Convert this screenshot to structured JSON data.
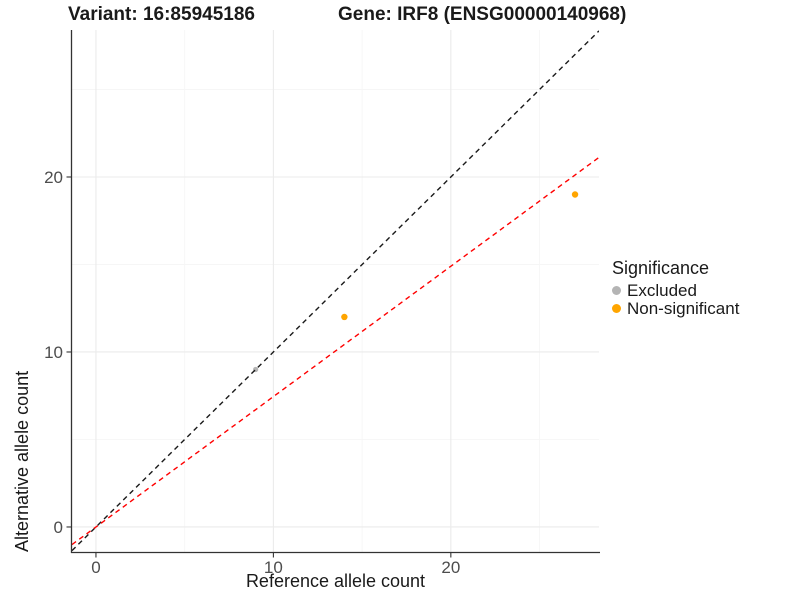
{
  "chart_data": {
    "type": "scatter",
    "titles": {
      "left": "Variant: 16:85945186",
      "right": "Gene: IRF8 (ENSG00000140968)"
    },
    "xlabel": "Reference allele count",
    "ylabel": "Alternative allele count",
    "axes": {
      "xlim": [
        -1.35,
        28.35
      ],
      "ylim": [
        -1.43,
        28.4
      ],
      "x_major_ticks": [
        0,
        10,
        20
      ],
      "x_minor_ticks": [
        5,
        15,
        25
      ],
      "y_major_ticks": [
        0,
        10,
        20
      ],
      "y_minor_ticks": [
        5,
        15,
        25
      ],
      "grid": true
    },
    "series": [
      {
        "name": "Excluded",
        "color": "#b4b4b4",
        "point_radius": 2.6,
        "points": [
          [
            9,
            9
          ]
        ]
      },
      {
        "name": "Non-significant",
        "color": "#ffa500",
        "point_radius": 3.2,
        "points": [
          [
            14,
            12
          ],
          [
            27,
            19
          ]
        ]
      }
    ],
    "lines": [
      {
        "name": "identity-line",
        "slope": 1.0,
        "intercept": 0,
        "color": "#1a1a1a",
        "style": "dashed"
      },
      {
        "name": "fit-line",
        "slope": 0.745,
        "intercept": 0,
        "color": "#ff0000",
        "style": "dashed"
      }
    ],
    "legend": {
      "title": "Significance",
      "position": "right",
      "items": [
        {
          "label": "Excluded",
          "color": "#b4b4b4"
        },
        {
          "label": "Non-significant",
          "color": "#ffa500"
        }
      ]
    },
    "colors": {
      "grid_major": "#ebebeb",
      "grid_minor": "#f6f6f6",
      "axis": "#333333",
      "tick_label": "#4d4d4d"
    }
  }
}
